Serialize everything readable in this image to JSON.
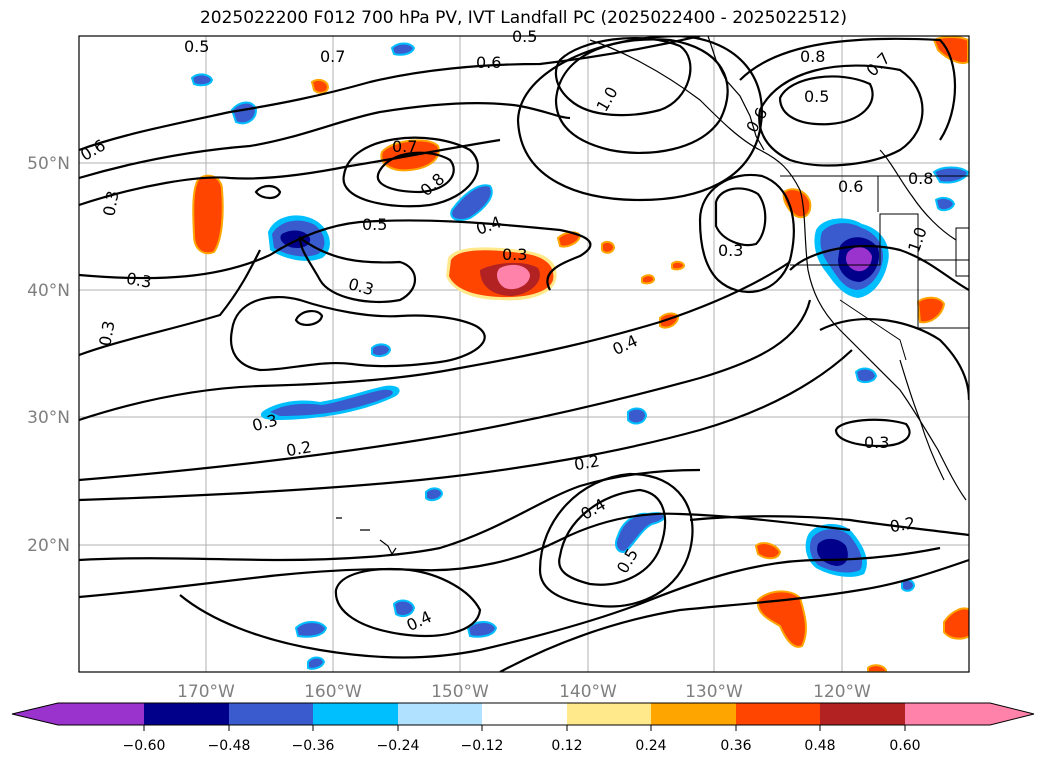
{
  "title": "2025022200 F012 700 hPa PV, IVT Landfall PC (2025022400 - 2025022512)",
  "lon_ticks": [
    "170°W",
    "160°W",
    "150°W",
    "140°W",
    "130°W",
    "120°W"
  ],
  "lat_ticks": [
    "50°N",
    "40°N",
    "30°N",
    "20°N"
  ],
  "colorbar": {
    "ticks": [
      "−0.60",
      "−0.48",
      "−0.36",
      "−0.24",
      "−0.12",
      "0.12",
      "0.24",
      "0.36",
      "0.48",
      "0.60"
    ],
    "colors": [
      "#9a32cd",
      "#00008b",
      "#3a5bcd",
      "#00bfff",
      "#b0e2ff",
      "#ffffff",
      "#ffe98a",
      "#ffa500",
      "#ff4500",
      "#b22222",
      "#ff82ab"
    ]
  },
  "contour_labels": [
    "0.5",
    "0.7",
    "0.6",
    "0.5",
    "1.0",
    "0.8",
    "0.7",
    "0.5",
    "0.6",
    "0.6",
    "0.7",
    "0.8",
    "0.8",
    "0.6",
    "0.3",
    "0.5",
    "0.4",
    "0.3",
    "0.3",
    "1.0",
    "0.3",
    "0.3",
    "0.3",
    "0.4",
    "0.3",
    "0.2",
    "0.2",
    "0.4",
    "0.5",
    "0.2",
    "0.3",
    "0.4"
  ]
}
